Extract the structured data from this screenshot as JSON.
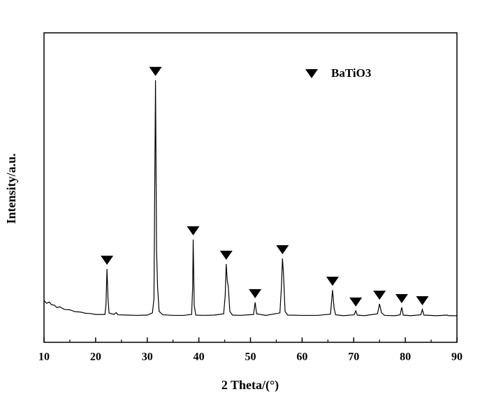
{
  "chart_data": {
    "type": "line",
    "x_label": "2 Theta/(°)",
    "y_label": "Intensity/a.u.",
    "xlim": [
      10,
      90
    ],
    "ylim": [
      0,
      100
    ],
    "xticks": [
      10,
      20,
      30,
      40,
      50,
      60,
      70,
      80,
      90
    ],
    "xminorticks": [
      15,
      25,
      35,
      45,
      55,
      65,
      75,
      85
    ],
    "legend": "upper right",
    "series": [
      {
        "name": "BaTiO3",
        "color": "#000000",
        "x": [
          10,
          10.5,
          11,
          11.5,
          12,
          12.5,
          13,
          14,
          15,
          16,
          17,
          18,
          19,
          20,
          21,
          21.8,
          22.0,
          22.2,
          22.4,
          22.6,
          23.5,
          24,
          24.3,
          26,
          28,
          30,
          31.0,
          31.3,
          31.6,
          31.8,
          32.0,
          32.3,
          33,
          35,
          37,
          38.6,
          38.8,
          38.9,
          39.1,
          39.4,
          41,
          43,
          44.8,
          45.1,
          45.3,
          45.5,
          45.7,
          46,
          46.5,
          48,
          50.6,
          50.9,
          51.2,
          53,
          55.7,
          56.0,
          56.2,
          56.4,
          56.7,
          57.2,
          60,
          63,
          65.5,
          65.9,
          66.2,
          66.5,
          68,
          70.1,
          70.4,
          70.7,
          72,
          74.6,
          75.0,
          75.4,
          76,
          78,
          79.0,
          79.3,
          79.6,
          81,
          83.0,
          83.3,
          83.6,
          86,
          88,
          88.5,
          90
        ],
        "values": [
          13.5,
          12.6,
          13.0,
          12.1,
          12.0,
          11.2,
          11.5,
          10.6,
          10.5,
          9.9,
          9.8,
          9.4,
          9.3,
          9.0,
          9.0,
          9.0,
          12,
          23.7,
          14,
          9.5,
          9.0,
          9.6,
          8.9,
          8.8,
          8.7,
          8.8,
          9.5,
          14,
          84.7,
          30,
          18,
          10,
          8.9,
          8.7,
          8.7,
          9,
          18,
          33.2,
          12,
          8.8,
          8.7,
          8.8,
          9.2,
          15,
          25.3,
          20,
          18,
          10,
          8.8,
          8.7,
          9,
          12.9,
          9.2,
          8.7,
          9.5,
          18,
          27.1,
          22,
          10,
          8.8,
          8.7,
          8.7,
          9.1,
          16.9,
          11,
          8.9,
          8.6,
          8.9,
          10.2,
          8.8,
          8.6,
          9.2,
          12.4,
          9.5,
          8.7,
          8.6,
          8.9,
          11.3,
          8.8,
          8.6,
          8.9,
          10.6,
          8.8,
          8.6,
          8.8,
          8.6,
          8.6
        ]
      }
    ],
    "markers": {
      "x": [
        22.2,
        31.6,
        38.9,
        45.3,
        50.9,
        56.2,
        65.9,
        70.4,
        75.0,
        79.3,
        83.3
      ],
      "values": [
        23.7,
        84.7,
        33.2,
        25.3,
        12.9,
        27.1,
        16.9,
        10.2,
        12.4,
        11.3,
        10.6
      ]
    }
  }
}
